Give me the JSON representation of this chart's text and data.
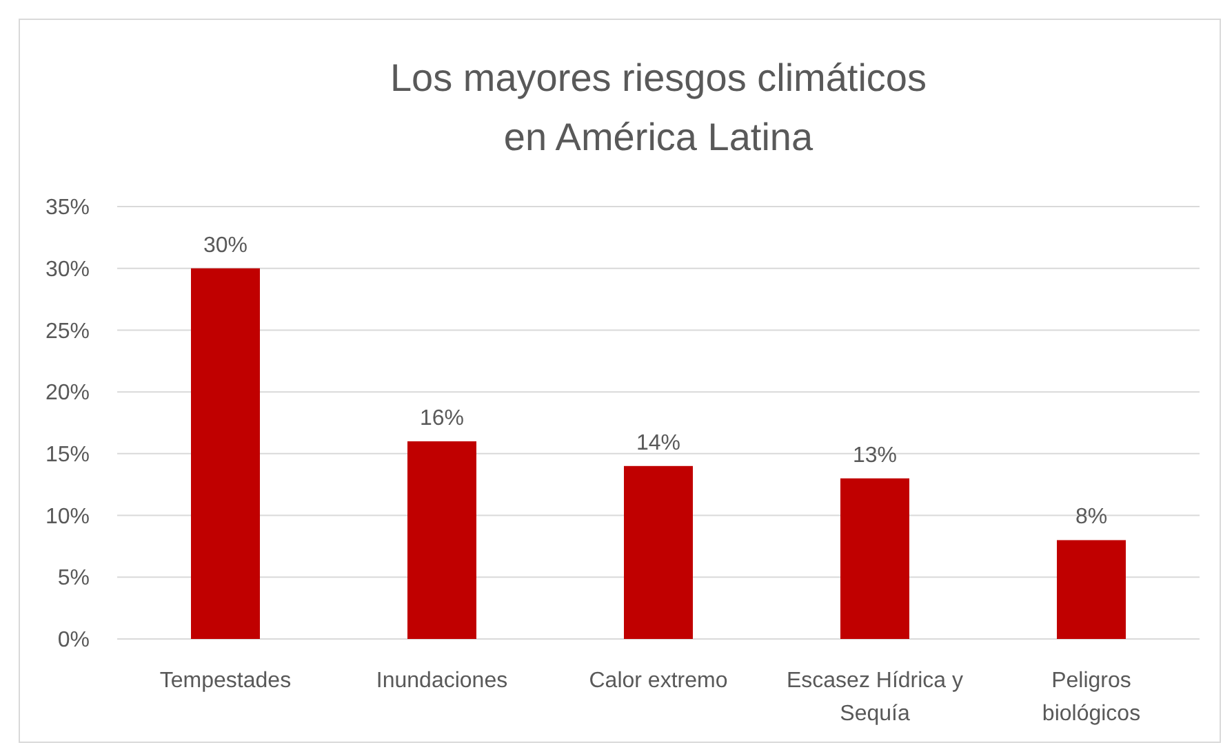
{
  "chart_data": {
    "type": "bar",
    "title": "Los mayores riesgos climáticos\nen América Latina",
    "categories": [
      "Tempestades",
      "Inundaciones",
      "Calor extremo",
      "Escasez Hídrica y Sequía",
      "Peligros biológicos"
    ],
    "values": [
      30,
      16,
      14,
      13,
      8
    ],
    "color": "#c00000",
    "ylim": [
      0,
      35
    ],
    "yticks": [
      {
        "value": 0,
        "label": "0%"
      },
      {
        "value": 5,
        "label": "5%"
      },
      {
        "value": 10,
        "label": "10%"
      },
      {
        "value": 15,
        "label": "15%"
      },
      {
        "value": 20,
        "label": "20%"
      },
      {
        "value": 25,
        "label": "25%"
      },
      {
        "value": 30,
        "label": "30%"
      },
      {
        "value": 35,
        "label": "35%"
      }
    ],
    "value_labels": [
      "30%",
      "16%",
      "14%",
      "13%",
      "8%"
    ],
    "grid": "y"
  }
}
